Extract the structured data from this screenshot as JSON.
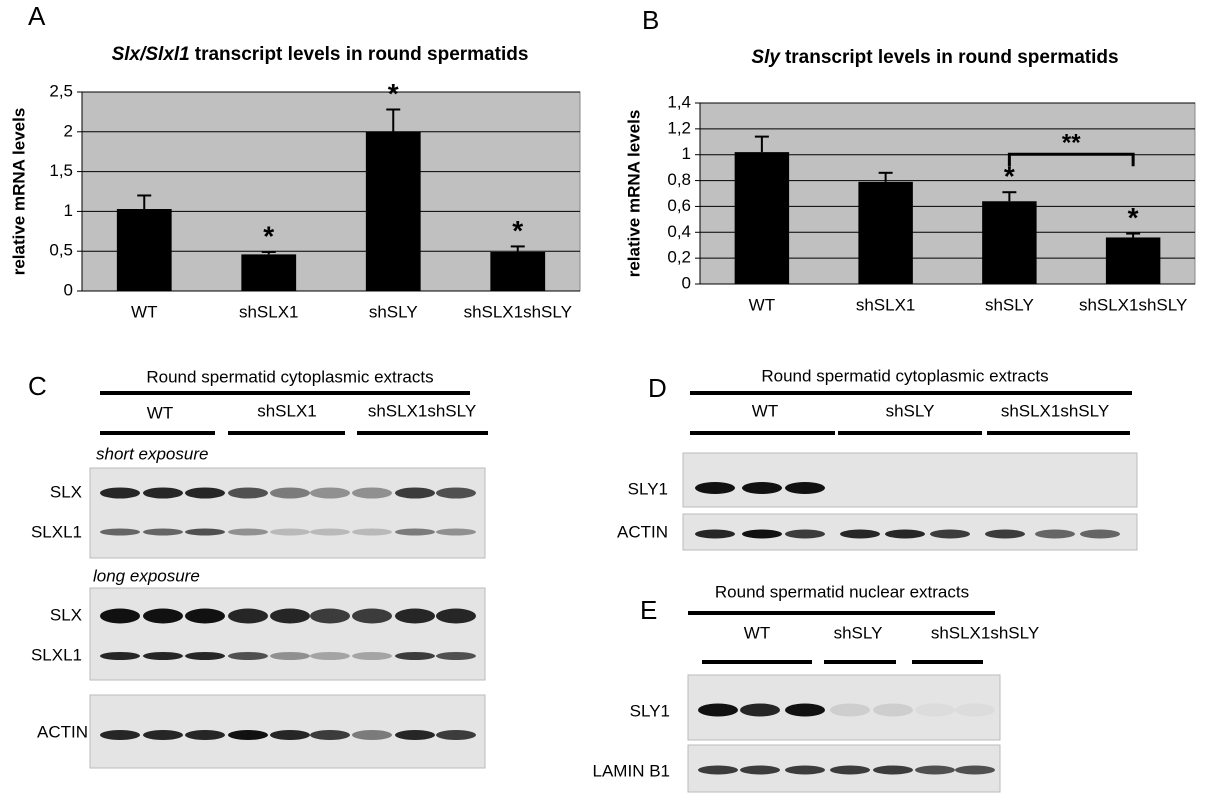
{
  "chart_data": [
    {
      "type": "bar",
      "panel": "A",
      "title": [
        "Slx/Slxl1",
        "transcript levels in round spermatids"
      ],
      "ylabel": "relative mRNA levels",
      "categories": [
        "WT",
        "shSLX1",
        "shSLY",
        "shSLX1shSLY"
      ],
      "values": [
        1.03,
        0.46,
        2.0,
        0.49
      ],
      "errors": [
        0.17,
        0.03,
        0.28,
        0.07
      ],
      "significance": [
        null,
        "*",
        "*",
        "*"
      ],
      "color": "#000000",
      "background": "#c0c0c0",
      "grid": true,
      "ylim": [
        0,
        2.5
      ],
      "yticks": [
        0,
        {
          "value": 0.5,
          "label": "0,5"
        },
        1,
        {
          "value": 1.5,
          "label": "1,5"
        },
        2,
        {
          "value": 2.5,
          "label": "2,5"
        }
      ]
    },
    {
      "type": "bar",
      "panel": "B",
      "title": [
        "Sly",
        "transcript levels in round spermatids"
      ],
      "ylabel": "relative mRNA levels",
      "categories": [
        "WT",
        "shSLX1",
        "shSLY",
        "shSLX1shSLY"
      ],
      "values": [
        1.02,
        0.79,
        0.64,
        0.36
      ],
      "errors": [
        0.12,
        0.07,
        0.07,
        0.03
      ],
      "significance": [
        null,
        null,
        "*",
        "*"
      ],
      "comparisons": [
        {
          "between": [
            "shSLY",
            "shSLX1shSLY"
          ],
          "label": "**"
        }
      ],
      "color": "#000000",
      "background": "#c0c0c0",
      "grid": true,
      "ylim": [
        0,
        1.4
      ],
      "yticks": [
        0,
        {
          "value": 0.2,
          "label": "0,2"
        },
        {
          "value": 0.4,
          "label": "0,4"
        },
        {
          "value": 0.6,
          "label": "0,6"
        },
        {
          "value": 0.8,
          "label": "0,8"
        },
        1,
        {
          "value": 1.2,
          "label": "1,2"
        },
        {
          "value": 1.4,
          "label": "1,4"
        }
      ]
    }
  ],
  "blots": {
    "C": {
      "letter": "C",
      "header": "Round spermatid cytoplasmic extracts",
      "groups": [
        "WT",
        "shSLX1",
        "shSLX1shSLY"
      ],
      "exposures": [
        "short exposure",
        "long exposure"
      ],
      "rows": [
        "SLX",
        "SLXL1",
        "SLX",
        "SLXL1",
        "ACTIN"
      ]
    },
    "D": {
      "letter": "D",
      "header": "Round spermatid cytoplasmic extracts",
      "groups": [
        "WT",
        "shSLY",
        "shSLX1shSLY"
      ],
      "rows": [
        "SLY1",
        "ACTIN"
      ]
    },
    "E": {
      "letter": "E",
      "header": "Round spermatid nuclear extracts",
      "groups": [
        "WT",
        "shSLY",
        "shSLX1shSLY"
      ],
      "rows": [
        "SLY1",
        "LAMIN B1"
      ]
    }
  }
}
